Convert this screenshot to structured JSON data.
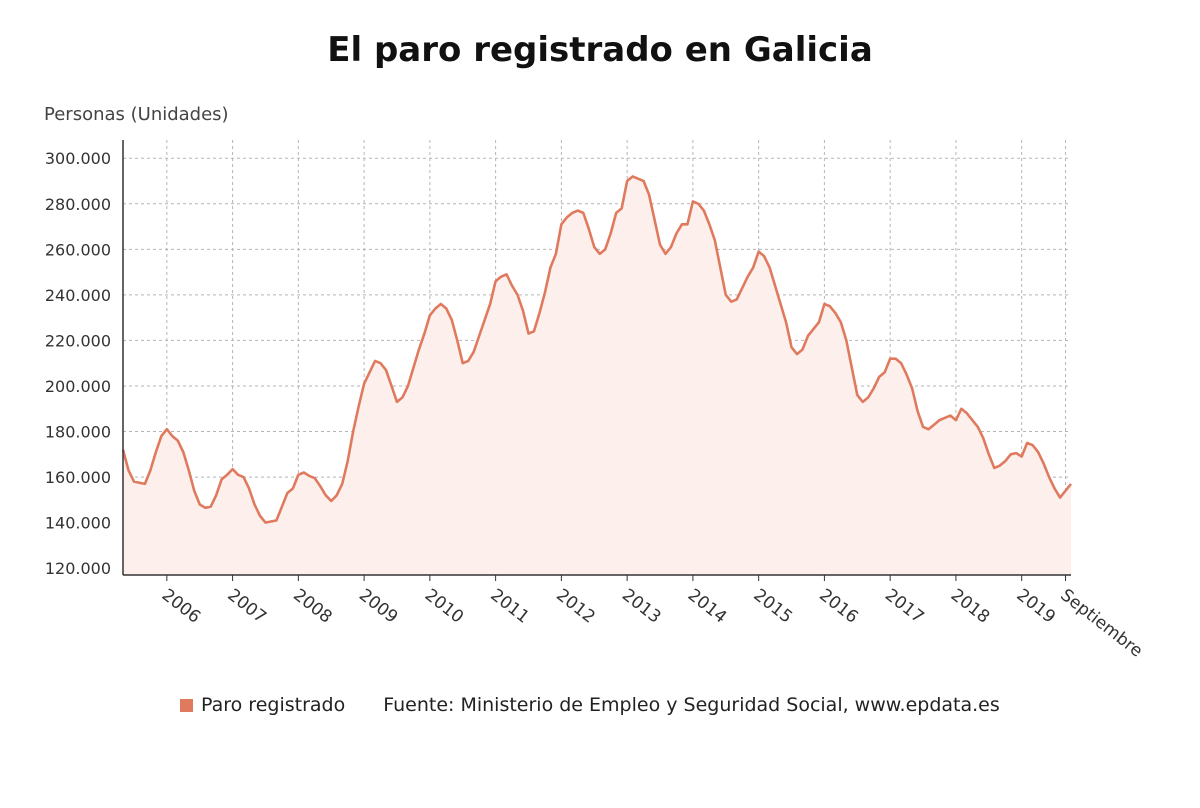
{
  "colors": {
    "line": "#e07a5f",
    "area": "#fdf0ec",
    "grid": "#b5b5b5",
    "axis": "#333333"
  },
  "chart_data": {
    "type": "area",
    "title": "El paro registrado en Galicia",
    "ylabel": "Personas (Unidades)",
    "xlabel": "",
    "ylim": [
      117000,
      308000
    ],
    "yticks": [
      120000,
      140000,
      160000,
      180000,
      200000,
      220000,
      240000,
      260000,
      280000,
      300000
    ],
    "ytick_labels": [
      "120.000",
      "140.000",
      "160.000",
      "180.000",
      "200.000",
      "220.000",
      "240.000",
      "260.000",
      "280.000",
      "300.000"
    ],
    "xticks": [
      {
        "label": "2006",
        "x": "2006-01"
      },
      {
        "label": "2007",
        "x": "2007-01"
      },
      {
        "label": "2008",
        "x": "2008-01"
      },
      {
        "label": "2009",
        "x": "2009-01"
      },
      {
        "label": "2010",
        "x": "2010-01"
      },
      {
        "label": "2011",
        "x": "2011-01"
      },
      {
        "label": "2012",
        "x": "2012-01"
      },
      {
        "label": "2013",
        "x": "2013-01"
      },
      {
        "label": "2014",
        "x": "2014-01"
      },
      {
        "label": "2015",
        "x": "2015-01"
      },
      {
        "label": "2016",
        "x": "2016-01"
      },
      {
        "label": "2017",
        "x": "2017-01"
      },
      {
        "label": "2018",
        "x": "2018-01"
      },
      {
        "label": "2019",
        "x": "2019-01"
      },
      {
        "label": "Septiembre",
        "x": "2019-09"
      }
    ],
    "grid": true,
    "legend_position": "bottom",
    "series": [
      {
        "name": "Paro registrado",
        "start": "2005-05",
        "values": [
          172000,
          163000,
          158000,
          157500,
          157000,
          163000,
          171000,
          178000,
          181000,
          178000,
          176000,
          171000,
          163000,
          154000,
          148000,
          146500,
          147000,
          152000,
          159000,
          161000,
          163500,
          161000,
          160000,
          155000,
          148000,
          143000,
          140000,
          140500,
          141000,
          147000,
          153000,
          155000,
          161000,
          162000,
          160500,
          159500,
          156000,
          152000,
          149500,
          152000,
          157000,
          167000,
          180000,
          191000,
          201000,
          206000,
          211000,
          210000,
          207000,
          200000,
          193000,
          195000,
          200000,
          208000,
          216000,
          223000,
          231000,
          234000,
          236000,
          234000,
          229000,
          220000,
          210000,
          211000,
          215000,
          222000,
          229000,
          236000,
          246000,
          248000,
          249000,
          244000,
          240000,
          233000,
          223000,
          224000,
          232000,
          241000,
          252000,
          258000,
          271000,
          274000,
          276000,
          277000,
          276000,
          269000,
          261000,
          258000,
          260000,
          267000,
          276000,
          278000,
          290000,
          292000,
          291000,
          290000,
          284000,
          273000,
          262000,
          258000,
          261000,
          267000,
          271000,
          271000,
          281000,
          280000,
          277000,
          271000,
          264000,
          252000,
          240000,
          237000,
          238000,
          243000,
          248000,
          252000,
          259000,
          257000,
          252000,
          244000,
          236000,
          228000,
          217000,
          214000,
          216000,
          222000,
          225000,
          228000,
          236000,
          235000,
          232000,
          228000,
          220000,
          208000,
          196000,
          193000,
          195000,
          199000,
          204000,
          206000,
          212000,
          212000,
          210000,
          205000,
          199000,
          189000,
          182000,
          181000,
          183000,
          185000,
          186000,
          187000,
          185000,
          190000,
          188000,
          185000,
          182000,
          177000,
          170000,
          164000,
          165000,
          167000,
          170000,
          170500,
          169000,
          175000,
          174000,
          171000,
          166000,
          160000,
          155000,
          151000,
          154000,
          157000
        ]
      }
    ]
  },
  "legend": {
    "series_label": "Paro registrado",
    "source": "Fuente: Ministerio de Empleo y Seguridad Social, www.epdata.es"
  }
}
